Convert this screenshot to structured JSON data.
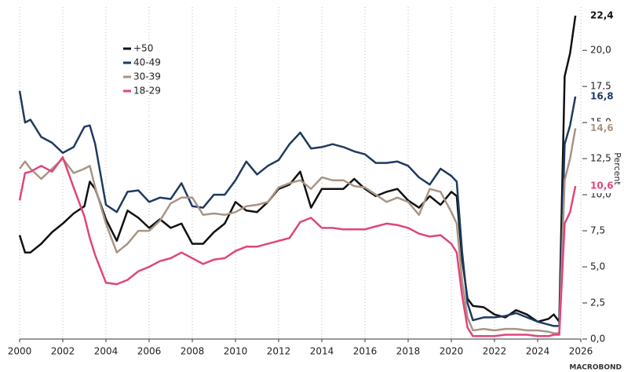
{
  "chart_data": {
    "type": "line",
    "y_axis_label": "Percent",
    "watermark": "MACROBOND",
    "x": [
      2000,
      2000.25,
      2000.5,
      2001,
      2001.5,
      2002,
      2002.5,
      2003,
      2003.25,
      2003.5,
      2004,
      2004.5,
      2005,
      2005.5,
      2006,
      2006.5,
      2007,
      2007.5,
      2008,
      2008.5,
      2009,
      2009.5,
      2010,
      2010.5,
      2011,
      2011.5,
      2012,
      2012.5,
      2013,
      2013.5,
      2014,
      2014.5,
      2015,
      2015.5,
      2016,
      2016.5,
      2017,
      2017.5,
      2018,
      2018.5,
      2019,
      2019.5,
      2020,
      2020.25,
      2020.5,
      2020.75,
      2021,
      2021.5,
      2022,
      2022.5,
      2023,
      2023.5,
      2024,
      2024.5,
      2024.75,
      2025,
      2025.25,
      2025.5,
      2025.75
    ],
    "series": [
      {
        "name": "+50",
        "color": "#111111",
        "end_label": "22,4",
        "values": [
          7.2,
          6.0,
          6.0,
          6.6,
          7.4,
          8.0,
          8.7,
          9.2,
          10.9,
          10.4,
          8.3,
          6.8,
          8.9,
          8.4,
          7.7,
          8.3,
          7.7,
          8.0,
          6.6,
          6.6,
          7.4,
          8.0,
          9.5,
          8.9,
          8.8,
          9.5,
          10.4,
          10.7,
          11.6,
          9.1,
          10.4,
          10.4,
          10.4,
          11.1,
          10.4,
          9.9,
          10.2,
          10.4,
          9.6,
          9.1,
          9.9,
          9.3,
          10.2,
          9.9,
          5.5,
          2.8,
          2.3,
          2.2,
          1.7,
          1.5,
          2.0,
          1.7,
          1.2,
          1.4,
          1.7,
          1.2,
          18.2,
          19.8,
          22.4
        ]
      },
      {
        "name": "40-49",
        "color": "#1f3a5f",
        "end_label": "16,8",
        "values": [
          17.2,
          15.0,
          15.2,
          14.0,
          13.6,
          12.9,
          13.3,
          14.7,
          14.8,
          13.5,
          9.3,
          8.8,
          10.2,
          10.3,
          9.5,
          9.8,
          9.7,
          10.8,
          9.2,
          9.1,
          10.0,
          10.0,
          11.0,
          12.3,
          11.4,
          12.0,
          12.4,
          13.5,
          14.3,
          13.2,
          13.3,
          13.5,
          13.3,
          13.0,
          12.8,
          12.2,
          12.2,
          12.3,
          12.0,
          11.2,
          10.7,
          11.8,
          11.3,
          10.9,
          6.0,
          2.5,
          1.3,
          1.5,
          1.5,
          1.6,
          1.8,
          1.5,
          1.2,
          1.0,
          0.9,
          0.9,
          13.5,
          14.8,
          16.8
        ]
      },
      {
        "name": "30-39",
        "color": "#a89585",
        "end_label": "14,6",
        "values": [
          11.8,
          12.3,
          11.8,
          11.1,
          11.8,
          12.5,
          11.5,
          11.8,
          12.0,
          10.5,
          8.0,
          6.0,
          6.6,
          7.5,
          7.5,
          8.2,
          9.4,
          9.8,
          9.8,
          8.6,
          8.7,
          8.6,
          8.8,
          9.2,
          9.3,
          9.5,
          10.5,
          10.8,
          11.0,
          10.4,
          11.2,
          11.0,
          11.0,
          10.6,
          10.5,
          10.0,
          9.5,
          9.8,
          9.5,
          8.6,
          10.4,
          10.2,
          8.8,
          8.0,
          4.0,
          1.5,
          0.6,
          0.7,
          0.6,
          0.7,
          0.7,
          0.6,
          0.6,
          0.5,
          0.4,
          0.4,
          11.0,
          12.5,
          14.6
        ]
      },
      {
        "name": "18-29",
        "color": "#e0457b",
        "end_label": "10,6",
        "values": [
          9.6,
          11.5,
          11.6,
          12.0,
          11.6,
          12.6,
          10.5,
          8.5,
          7.0,
          5.8,
          3.9,
          3.8,
          4.1,
          4.7,
          5.0,
          5.4,
          5.6,
          6.0,
          5.6,
          5.2,
          5.5,
          5.6,
          6.1,
          6.4,
          6.4,
          6.6,
          6.8,
          7.0,
          8.1,
          8.4,
          7.7,
          7.7,
          7.6,
          7.6,
          7.6,
          7.8,
          8.0,
          7.9,
          7.7,
          7.3,
          7.1,
          7.2,
          6.6,
          6.0,
          3.0,
          0.8,
          0.2,
          0.2,
          0.2,
          0.3,
          0.3,
          0.3,
          0.2,
          0.2,
          0.3,
          0.3,
          8.0,
          8.8,
          10.6
        ]
      }
    ],
    "xlim": [
      2000,
      2026
    ],
    "xticks": [
      2000,
      2002,
      2004,
      2006,
      2008,
      2010,
      2012,
      2014,
      2016,
      2018,
      2020,
      2022,
      2024,
      2026
    ],
    "ylim": [
      0,
      23
    ],
    "yticks": [
      {
        "value": 0,
        "label": "0,0"
      },
      {
        "value": 2.5,
        "label": "2,5"
      },
      {
        "value": 5,
        "label": "5,0"
      },
      {
        "value": 7.5,
        "label": "7,5"
      },
      {
        "value": 10,
        "label": "10,0"
      },
      {
        "value": 12.5,
        "label": "12,5"
      },
      {
        "value": 15,
        "label": "15,0"
      },
      {
        "value": 17.5,
        "label": "17,5"
      },
      {
        "value": 20,
        "label": "20,0"
      }
    ],
    "grid": "x",
    "legend": "upper left"
  }
}
